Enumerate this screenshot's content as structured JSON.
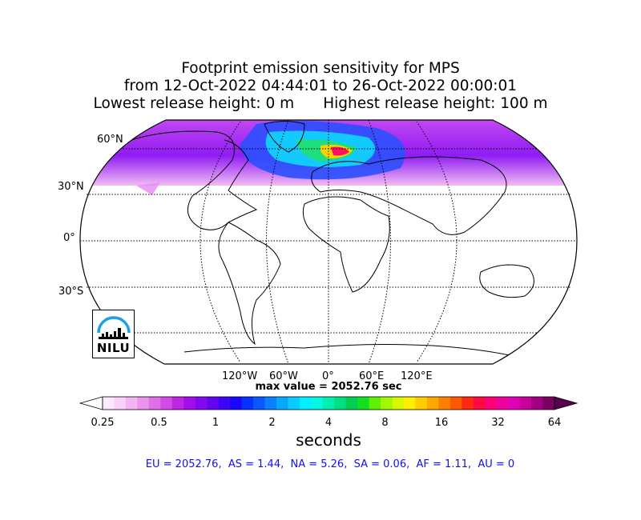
{
  "title": {
    "line1": "Footprint emission sensitivity for MPS",
    "line2": "from 12-Oct-2022 04:44:01 to 26-Oct-2022 00:00:01",
    "line3_left": "Lowest release height: 0 m",
    "line3_right": "Highest release height: 100 m"
  },
  "map": {
    "projection": "robinson",
    "lat_labels": [
      "60°N",
      "30°N",
      "0°",
      "30°S"
    ],
    "lon_labels": [
      "120°W",
      "60°W",
      "0°",
      "60°E",
      "120°E"
    ],
    "gridlines": "dotted",
    "sensitivity_region": "northern hemisphere mid/high latitudes, max over western Europe"
  },
  "max_value_text": "max value = 2052.76 sec",
  "colorbar": {
    "tick_labels": [
      "0.25",
      "0.5",
      "1",
      "2",
      "4",
      "8",
      "16",
      "32",
      "64"
    ],
    "label": "seconds",
    "colors": [
      "#fde8fd",
      "#f9d0f9",
      "#f3b4f3",
      "#eb94ee",
      "#e070ea",
      "#d34ae6",
      "#c026e4",
      "#a40ce8",
      "#8408ee",
      "#6206f2",
      "#3c04f6",
      "#1a06fa",
      "#0830ff",
      "#0858ff",
      "#0a80ff",
      "#08a8ff",
      "#06ccff",
      "#04eeff",
      "#02f8e0",
      "#00f0b0",
      "#00e080",
      "#00d050",
      "#10e020",
      "#60f000",
      "#a0f800",
      "#d8f800",
      "#ffee00",
      "#ffcc00",
      "#ffa800",
      "#ff8000",
      "#ff5800",
      "#ff2a10",
      "#ff0a40",
      "#ff0078",
      "#f000a0",
      "#e000b8",
      "#c8009c",
      "#a00080",
      "#7a0060"
    ]
  },
  "regions_text": "EU = 2052.76,  AS = 1.44,  NA = 5.26,  SA = 0.06,  AF = 1.11,  AU = 0",
  "logo": {
    "text": "NILU"
  }
}
